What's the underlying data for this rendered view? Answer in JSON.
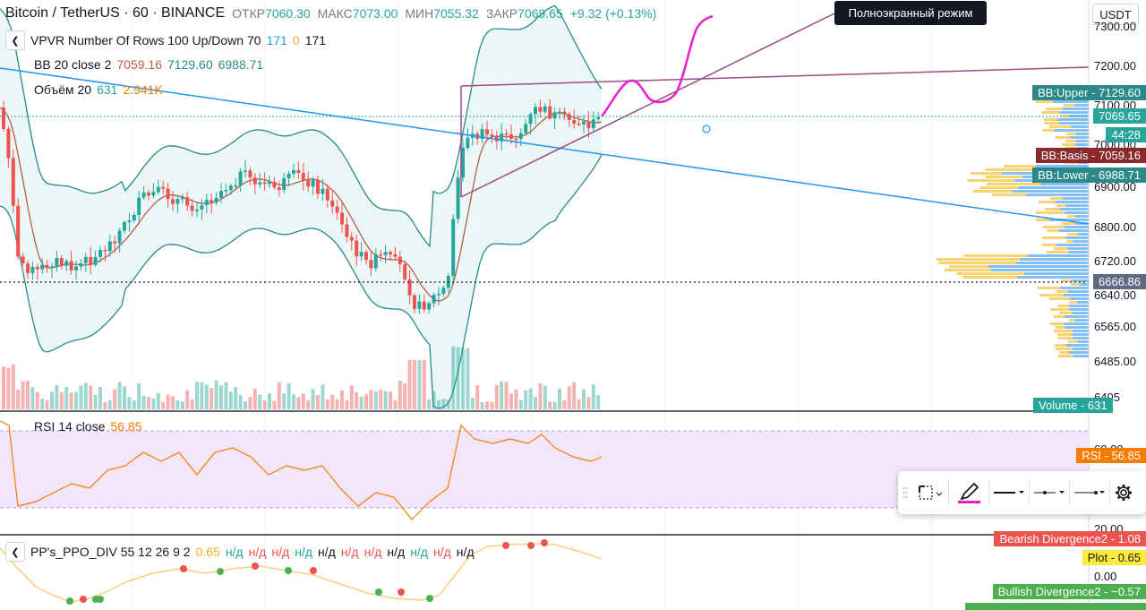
{
  "header": {
    "title": "Bitcoin / TetherUS · 60 · BINANCE",
    "open_label": "ОТКР",
    "open": "7060.30",
    "high_label": "МАКС",
    "high": "7073.00",
    "low_label": "МИН",
    "low": "7055.32",
    "close_label": "ЗАКР",
    "close": "7069.65",
    "change": "+9.32 (+0.13%)"
  },
  "fullscreen_tooltip": "Полноэкранный режим",
  "currency_button": "USDT",
  "indicators": {
    "vpvr": {
      "label": "VPVR Number Of Rows 100 Up/Down 70",
      "v1": "171",
      "v2": "0",
      "v3": "171"
    },
    "bb": {
      "label": "BB 20 close 2",
      "basis": "7059.16",
      "upper": "7129.60",
      "lower": "6988.71"
    },
    "volume": {
      "label": "Объём 20",
      "v1": "631",
      "v2": "2.941K"
    }
  },
  "price_axis": {
    "ticks": [
      "7300.00",
      "7200.00",
      "7100.00",
      "7000.00",
      "6900.00",
      "6800.00",
      "6720.00",
      "6640.00",
      "6565.00",
      "6485.00",
      "6405"
    ],
    "labels": {
      "bb_upper": "BB:Upper - 7129.60",
      "last_price": "7069.65",
      "countdown": "44:28",
      "bb_basis": "BB:Basis - 7059.16",
      "bb_lower": "BB:Lower - 6988.71",
      "level": "6666.86",
      "volume": "Volume - 631"
    }
  },
  "rsi": {
    "label": "RSI 14 close",
    "value": "56.85",
    "axis_label": "RSI - 56.85",
    "ticks": [
      "60.00",
      "20.00"
    ]
  },
  "ppo": {
    "label": "PP's_PPO_DIV 55 12 26 9 2",
    "value": "0.65",
    "na": [
      "н/д",
      "н/д",
      "н/д",
      "н/д",
      "н/д",
      "н/д",
      "н/д",
      "н/д",
      "н/д",
      "н/д",
      "н/д"
    ],
    "labels": {
      "bearish": "Bearish Divergence2 - 1.08",
      "plot": "Plot - 0.65",
      "zero": "0.00",
      "bullish": "Bullish Divergence2 - −0.57"
    }
  },
  "colors": {
    "up": "#26a69a",
    "down": "#ef5350",
    "bb_line": "#2a8a8a",
    "bb_basis": "#b85c48",
    "trend_blue": "#2196f3",
    "trend_purple": "#9c4a8a",
    "magenta": "#e91ecd",
    "rsi_band": "#f3e5fb",
    "rsi_line": "#f57c00",
    "ppo_line": "#ffcc80",
    "vp_yellow": "#f9c74f",
    "vp_blue": "#5aa8f0"
  },
  "toolbar": {
    "icons": [
      "drag-handle-icon",
      "select-area-icon",
      "pencil-icon",
      "line-style-icon",
      "dashed-line-icon",
      "dotted-line-icon",
      "settings-icon"
    ]
  }
}
